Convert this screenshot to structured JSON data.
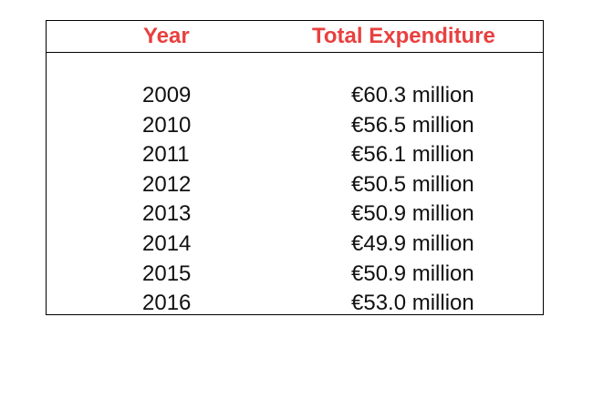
{
  "table": {
    "columns": [
      "Year",
      "Total Expenditure"
    ],
    "header_color": "#e8403f",
    "rows": [
      {
        "year": "2009",
        "amount": "€60.3 million"
      },
      {
        "year": "2010",
        "amount": "€56.5 million"
      },
      {
        "year": "2011",
        "amount": "€56.1 million"
      },
      {
        "year": "2012",
        "amount": "€50.5 million"
      },
      {
        "year": "2013",
        "amount": "€50.9 million"
      },
      {
        "year": "2014",
        "amount": "€49.9 million"
      },
      {
        "year": "2015",
        "amount": "€50.9 million"
      },
      {
        "year": "2016",
        "amount": "€53.0 million"
      }
    ]
  }
}
